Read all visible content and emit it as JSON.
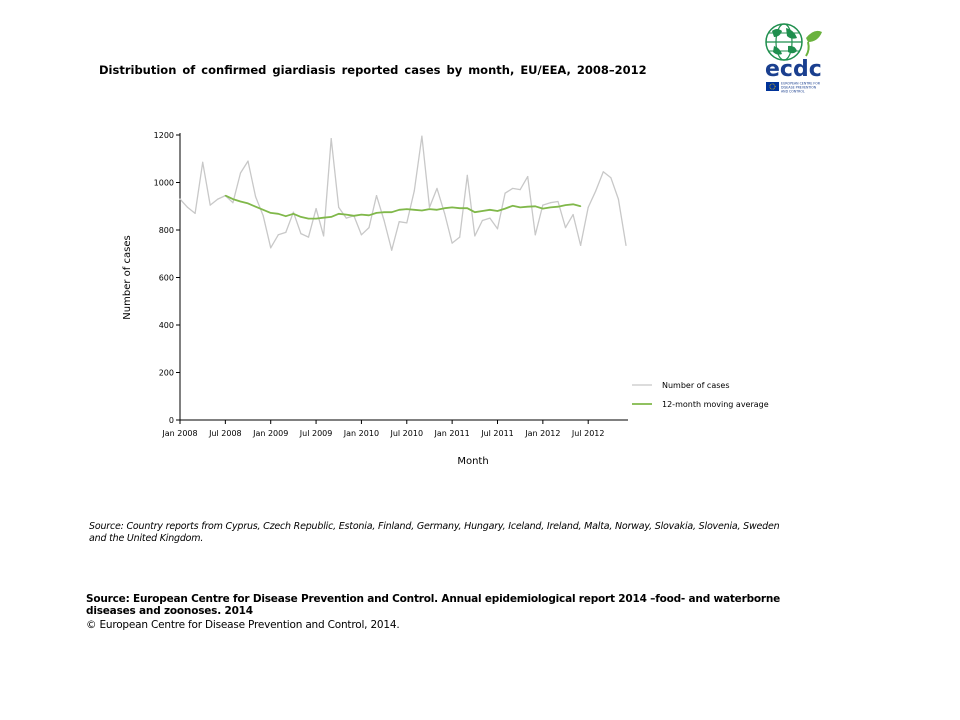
{
  "title": "Distribution  of confirmed  giardiasis  reported cases by month,  EU/EEA,  2008–2012",
  "logo": {
    "text": "ecdc",
    "subtext_lines": [
      "EUROPEAN CENTRE FOR",
      "DISEASE PREVENTION",
      "AND CONTROL"
    ],
    "colors": {
      "globe": "#1f8f4e",
      "letters": "#1a3f8f",
      "leaf": "#6ab23e",
      "flag": "#003399"
    }
  },
  "chart_data": {
    "type": "line",
    "xlabel": "Month",
    "ylabel": "Number of cases",
    "ylim": [
      0,
      1200
    ],
    "yticks": [
      0,
      200,
      400,
      600,
      800,
      1000,
      1200
    ],
    "xticks": [
      {
        "index": 0,
        "label": "Jan 2008"
      },
      {
        "index": 6,
        "label": "Jul 2008"
      },
      {
        "index": 12,
        "label": "Jan 2009"
      },
      {
        "index": 18,
        "label": "Jul 2009"
      },
      {
        "index": 24,
        "label": "Jan 2010"
      },
      {
        "index": 30,
        "label": "Jul 2010"
      },
      {
        "index": 36,
        "label": "Jan 2011"
      },
      {
        "index": 42,
        "label": "Jul 2011"
      },
      {
        "index": 48,
        "label": "Jan 2012"
      },
      {
        "index": 54,
        "label": "Jul 2012"
      }
    ],
    "x_start": "Jan 2008",
    "n_months": 60,
    "legend_position": "bottom-right",
    "series": [
      {
        "name": "Number of cases",
        "color": "#c8c8c8",
        "start_index": 0,
        "values": [
          930,
          895,
          870,
          1085,
          905,
          930,
          945,
          915,
          1040,
          1090,
          940,
          860,
          725,
          780,
          790,
          875,
          785,
          770,
          890,
          775,
          1185,
          895,
          850,
          860,
          780,
          810,
          945,
          840,
          715,
          835,
          830,
          965,
          1195,
          895,
          975,
          870,
          745,
          770,
          1030,
          775,
          840,
          850,
          805,
          955,
          975,
          970,
          1025,
          780,
          905,
          915,
          920,
          810,
          865,
          735,
          895,
          965,
          1045,
          1020,
          930,
          735
        ]
      },
      {
        "name": "12-month moving average",
        "color": "#80b84a",
        "start_index": 6,
        "values": [
          945,
          930,
          920,
          912,
          898,
          885,
          872,
          868,
          858,
          868,
          855,
          848,
          848,
          852,
          855,
          868,
          865,
          860,
          865,
          862,
          872,
          875,
          875,
          885,
          888,
          885,
          882,
          888,
          885,
          892,
          895,
          892,
          892,
          875,
          880,
          885,
          880,
          890,
          902,
          895,
          898,
          900,
          890,
          895,
          898,
          905,
          908,
          900
        ]
      }
    ]
  },
  "note": "Source: Country reports from Cyprus, Czech Republic, Estonia, Finland, Germany, Hungary, Iceland, Ireland, Malta, Norway, Slovakia, Slovenia, Sweden and the United Kingdom.",
  "source": "Source: European Centre for Disease Prevention and Control.  Annual epidemiological report 2014 –food- and waterborne diseases and zoonoses. 2014",
  "copyright": "© European Centre for Disease Prevention and Control, 2014."
}
